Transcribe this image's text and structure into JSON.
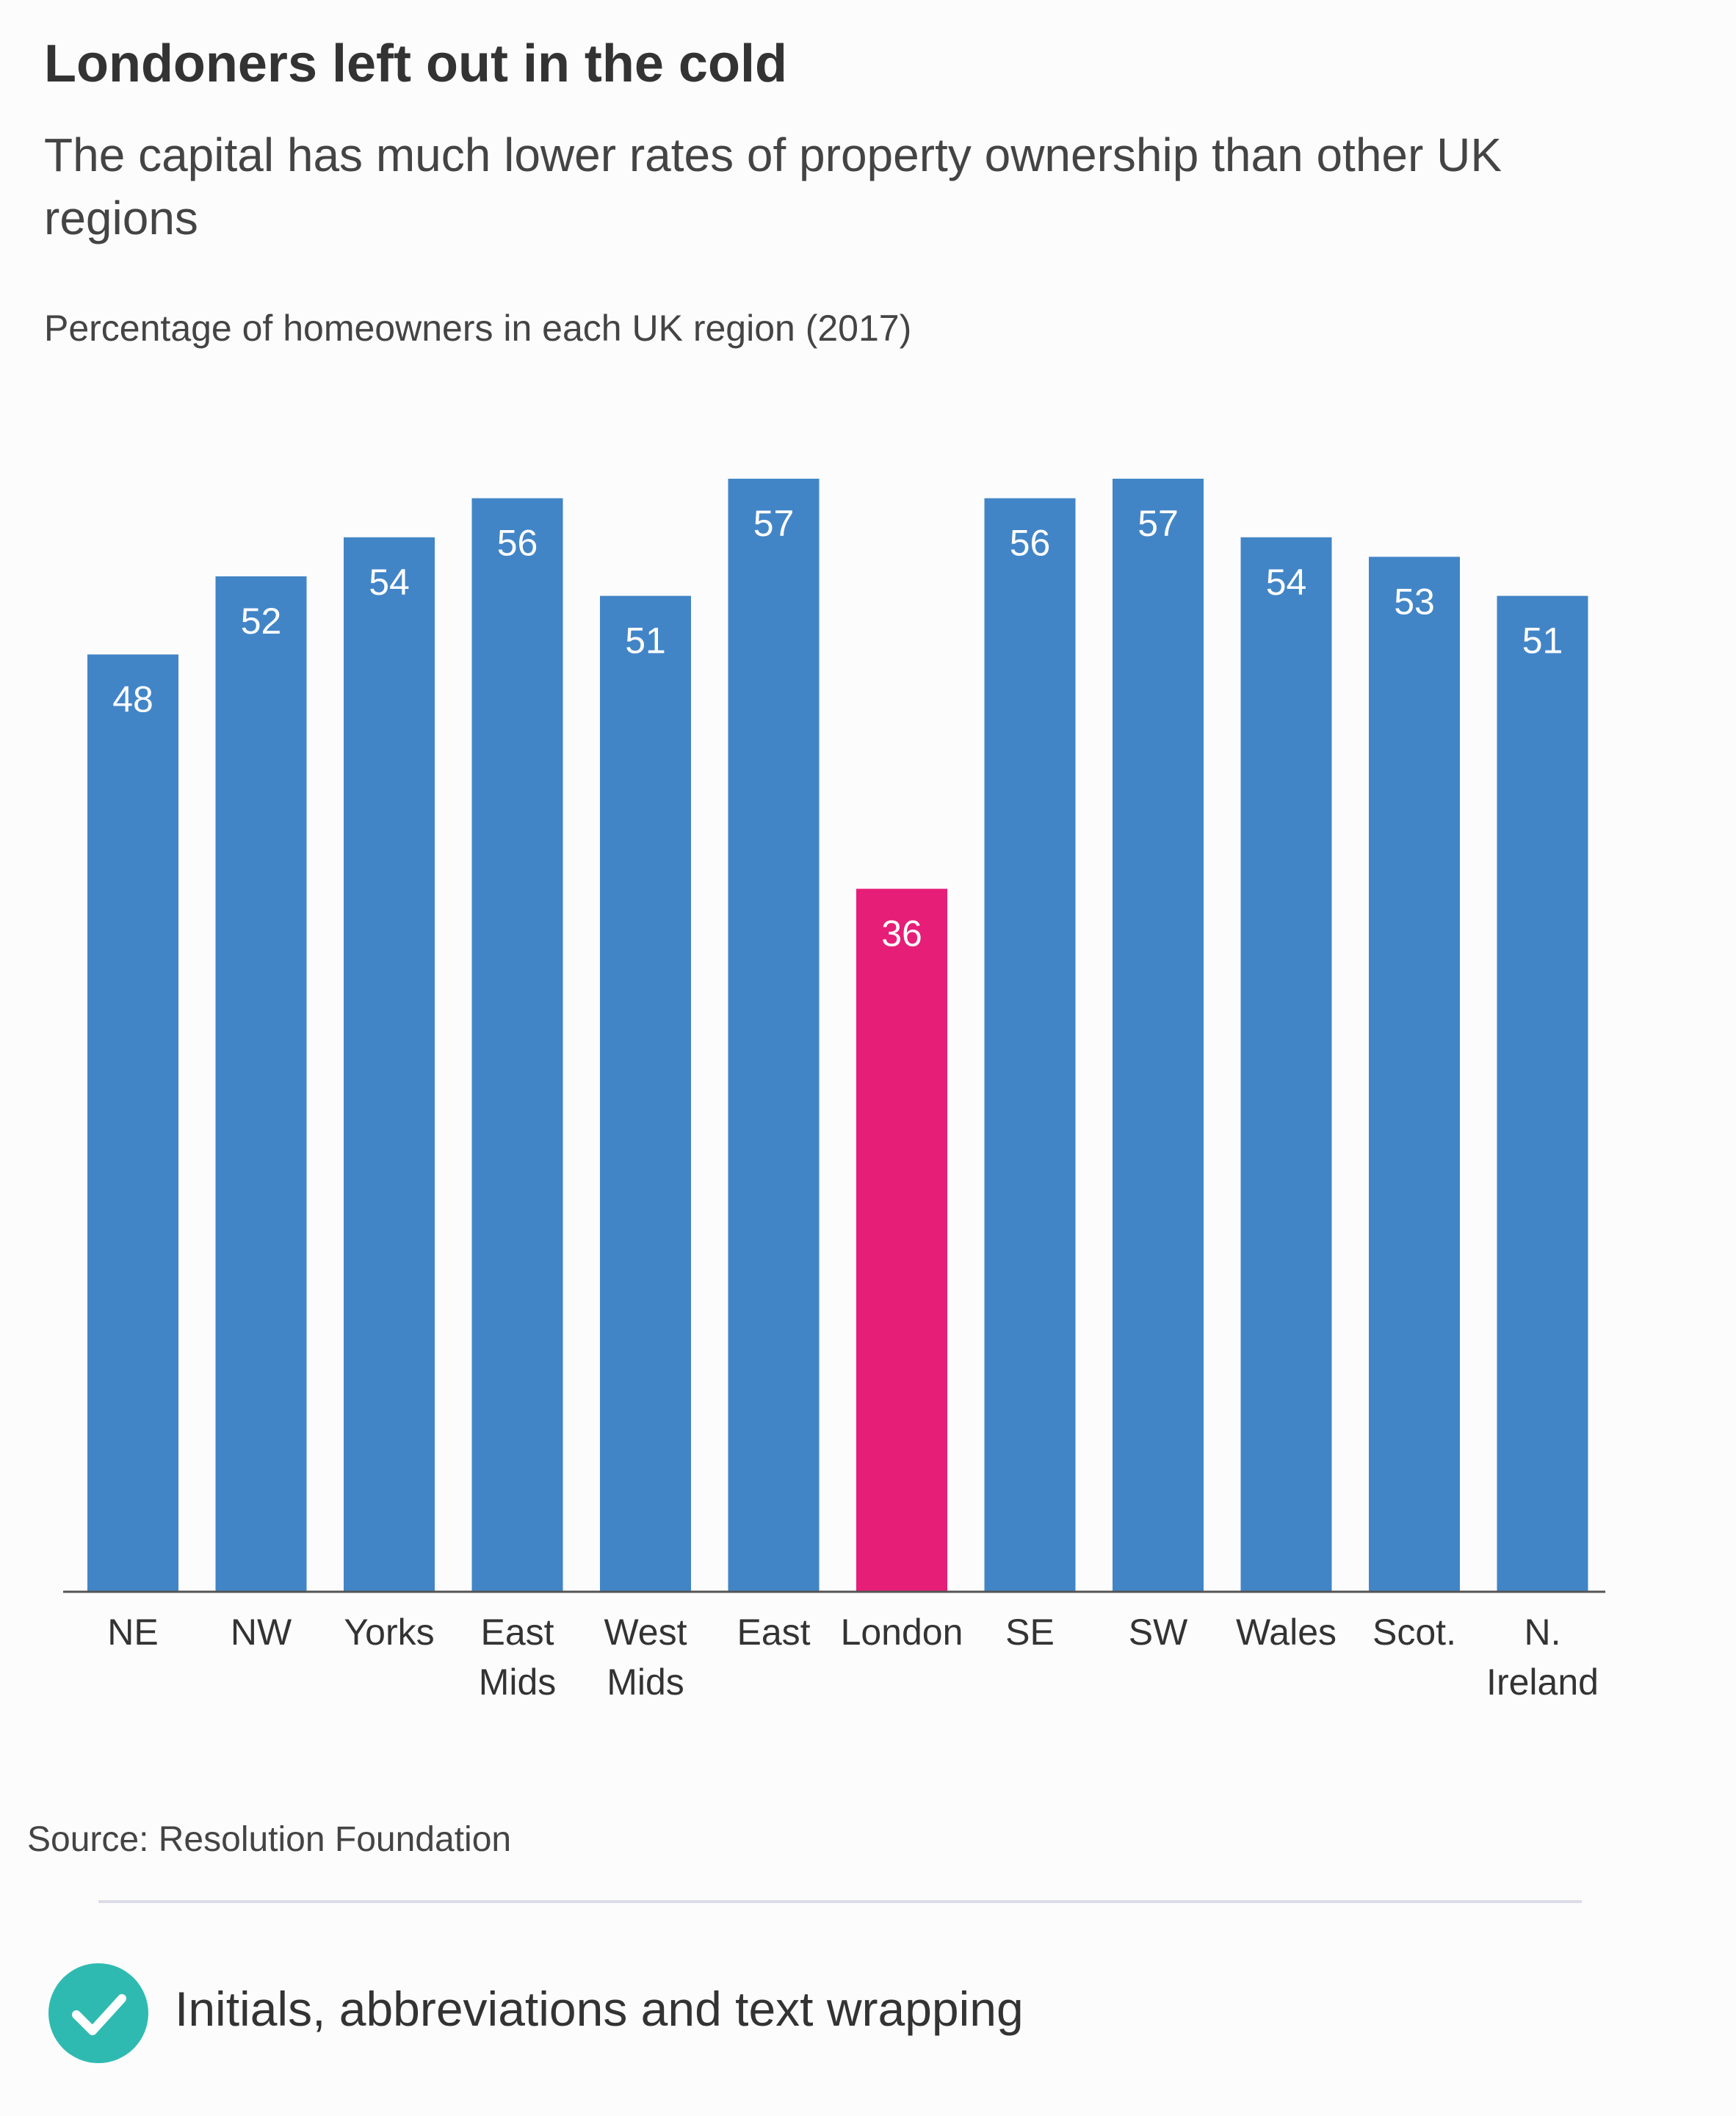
{
  "chart_data": {
    "type": "bar",
    "title": "Londoners left out in the cold",
    "subtitle": "The capital has much lower rates of property ownership than other UK regions",
    "ylabel": "Percentage of homeowners in each UK region (2017)",
    "xlabel": "",
    "categories": [
      [
        "NE"
      ],
      [
        "NW"
      ],
      [
        "Yorks"
      ],
      [
        "East",
        "Mids"
      ],
      [
        "West",
        "Mids"
      ],
      [
        "East"
      ],
      [
        "London"
      ],
      [
        "SE"
      ],
      [
        "SW"
      ],
      [
        "Wales"
      ],
      [
        "Scot."
      ],
      [
        "N.",
        "Ireland"
      ]
    ],
    "values": [
      48,
      52,
      54,
      56,
      51,
      57,
      36,
      56,
      57,
      54,
      53,
      51
    ],
    "ylim": [
      0,
      57
    ],
    "grid": false,
    "highlight_index": 6,
    "colors": {
      "bar": "#4285c7",
      "highlight": "#e61e78",
      "axis": "#555555",
      "bar_label": "#ffffff"
    }
  },
  "source": "Source: Resolution Foundation",
  "footer": {
    "icon": "check-circle-icon",
    "icon_color": "#2fbab1",
    "label": "Initials, abbreviations and text wrapping"
  }
}
